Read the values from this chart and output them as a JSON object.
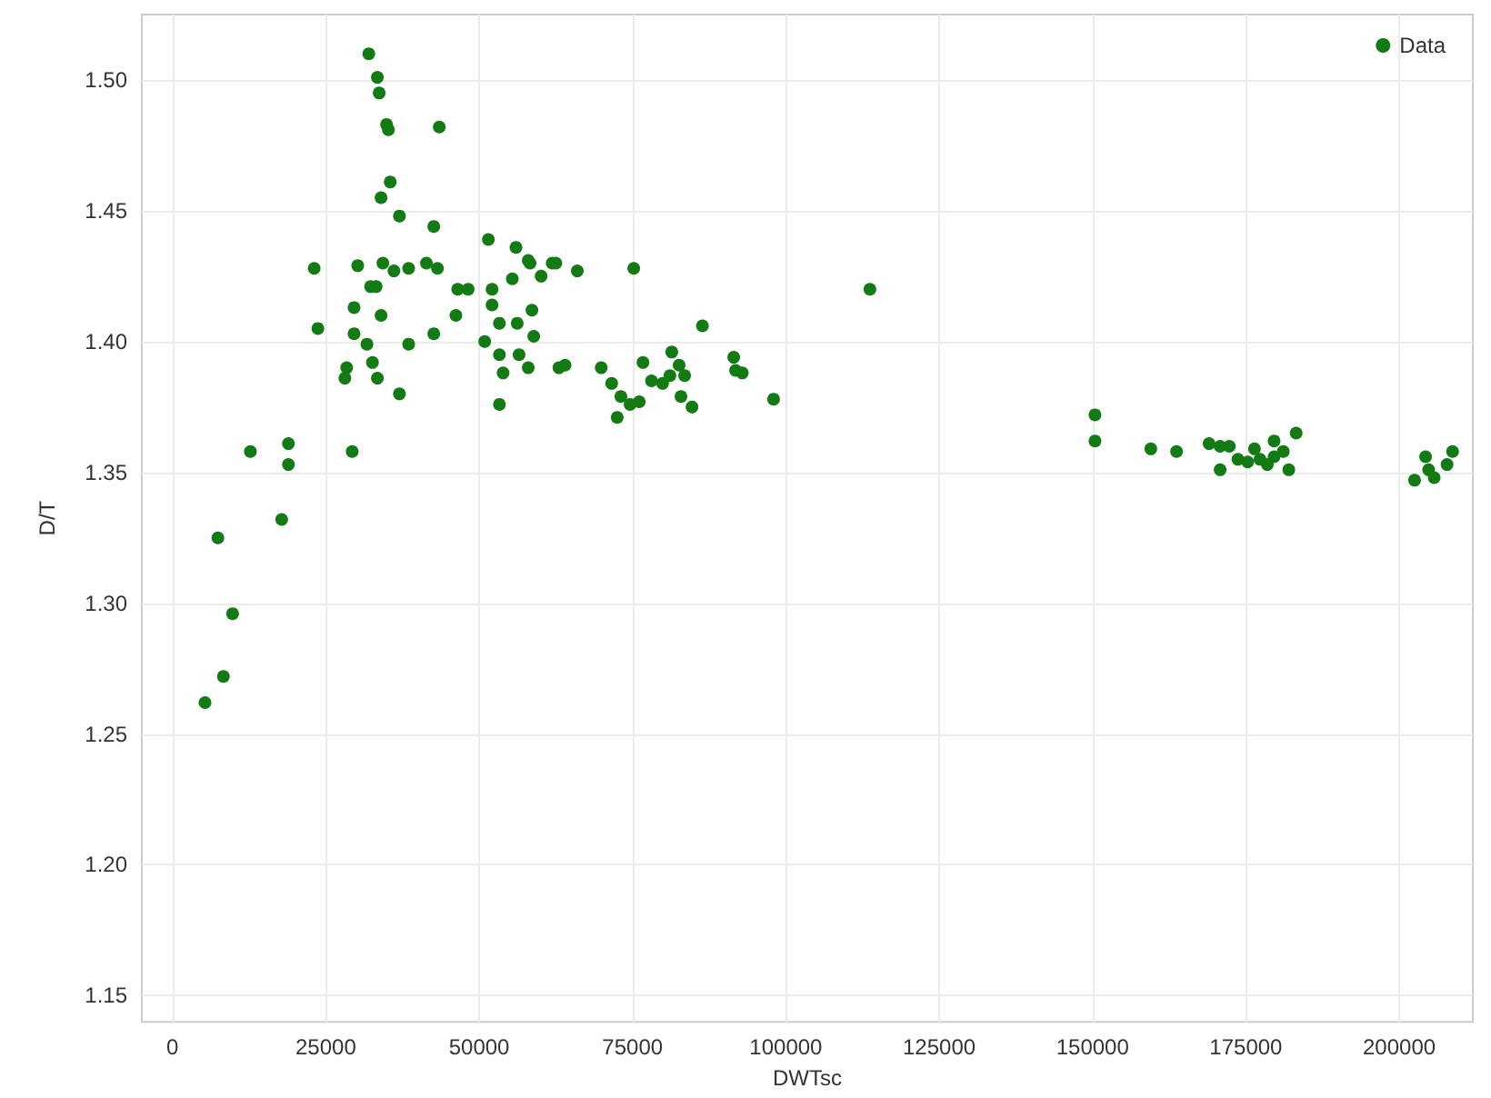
{
  "chart_data": {
    "type": "scatter",
    "xlabel": "DWTsc",
    "ylabel": "D/T",
    "xlim": [
      -5000,
      212000
    ],
    "ylim": [
      1.14,
      1.525
    ],
    "xticks": [
      0,
      25000,
      50000,
      75000,
      100000,
      125000,
      150000,
      175000,
      200000
    ],
    "yticks": [
      {
        "value": 1.15,
        "label": "1.15"
      },
      {
        "value": 1.2,
        "label": "1.20"
      },
      {
        "value": 1.25,
        "label": "1.25"
      },
      {
        "value": 1.3,
        "label": "1.30"
      },
      {
        "value": 1.35,
        "label": "1.35"
      },
      {
        "value": 1.4,
        "label": "1.40"
      },
      {
        "value": 1.45,
        "label": "1.45"
      },
      {
        "value": 1.5,
        "label": "1.50"
      }
    ],
    "grid": true,
    "legend": "top right",
    "marker": "circle",
    "series": [
      {
        "name": "Data",
        "color": "#137b13",
        "x": [
          5300,
          8300,
          9800,
          7400,
          17800,
          18900,
          18900,
          12700,
          29300,
          32000,
          33400,
          33700,
          34900,
          35200,
          43500,
          35500,
          34000,
          37000,
          42600,
          23100,
          30200,
          34300,
          36100,
          38500,
          41400,
          43200,
          51500,
          56000,
          58000,
          62500,
          66000,
          55400,
          60100,
          32300,
          33200,
          46500,
          48200,
          52100,
          29600,
          34000,
          46200,
          52100,
          53300,
          56200,
          58600,
          23700,
          29600,
          31700,
          38500,
          42600,
          50900,
          53300,
          56500,
          58000,
          32600,
          28400,
          28100,
          33400,
          53900,
          63000,
          64000,
          37000,
          53300,
          58300,
          61900,
          58900,
          75200,
          69900,
          71600,
          73100,
          74600,
          76100,
          72500,
          76700,
          78100,
          81100,
          81400,
          82600,
          83500,
          82900,
          84700,
          79900,
          86400,
          91500,
          92900,
          91800,
          98000,
          113700,
          150400,
          150400,
          159500,
          163700,
          169000,
          170800,
          172300,
          170800,
          173700,
          175300,
          177300,
          179600,
          179600,
          181100,
          182000,
          183200,
          176400,
          178500,
          202500,
          204800,
          205700,
          207800,
          208700,
          204300
        ],
        "values": [
          1.262,
          1.272,
          1.296,
          1.325,
          1.332,
          1.353,
          1.361,
          1.358,
          1.358,
          1.51,
          1.501,
          1.495,
          1.483,
          1.481,
          1.482,
          1.461,
          1.455,
          1.448,
          1.444,
          1.428,
          1.429,
          1.43,
          1.427,
          1.428,
          1.43,
          1.428,
          1.439,
          1.436,
          1.431,
          1.43,
          1.427,
          1.424,
          1.425,
          1.421,
          1.421,
          1.42,
          1.42,
          1.42,
          1.413,
          1.41,
          1.41,
          1.414,
          1.407,
          1.407,
          1.412,
          1.405,
          1.403,
          1.399,
          1.399,
          1.403,
          1.4,
          1.395,
          1.395,
          1.39,
          1.392,
          1.39,
          1.386,
          1.386,
          1.388,
          1.39,
          1.391,
          1.38,
          1.376,
          1.43,
          1.43,
          1.402,
          1.428,
          1.39,
          1.384,
          1.379,
          1.376,
          1.377,
          1.371,
          1.392,
          1.385,
          1.387,
          1.396,
          1.391,
          1.387,
          1.379,
          1.375,
          1.384,
          1.406,
          1.394,
          1.388,
          1.389,
          1.378,
          1.42,
          1.362,
          1.372,
          1.359,
          1.358,
          1.361,
          1.36,
          1.36,
          1.351,
          1.355,
          1.354,
          1.355,
          1.356,
          1.362,
          1.358,
          1.351,
          1.365,
          1.359,
          1.353,
          1.347,
          1.351,
          1.348,
          1.353,
          1.358,
          1.356
        ]
      }
    ]
  }
}
